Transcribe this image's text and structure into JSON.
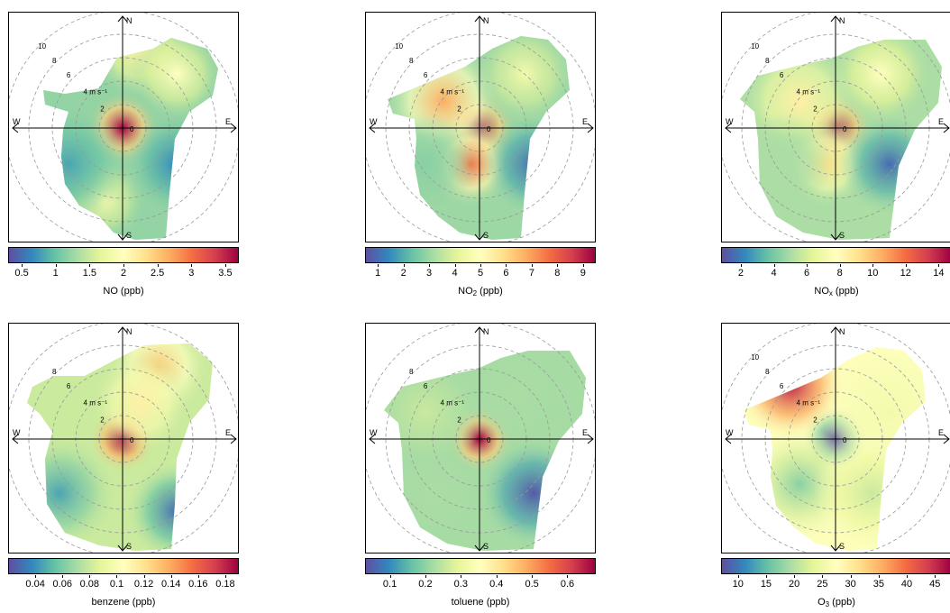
{
  "compass": {
    "north": "N",
    "south": "S",
    "east": "E",
    "west": "W"
  },
  "chart_data": [
    {
      "type": "heatmap",
      "kind": "polar plot",
      "colorbar_label": "NO (ppb)",
      "colorbar_ticks": [
        "0.5",
        "1",
        "1.5",
        "2",
        "2.5",
        "3",
        "3.5"
      ],
      "colorbar_range": [
        0.3,
        3.7
      ],
      "radial_labels": [
        "10",
        "8",
        "6",
        "4 m s⁻¹",
        "2",
        "0"
      ],
      "peak_value": 3.7,
      "background_value": 1.2
    },
    {
      "type": "heatmap",
      "kind": "polar plot",
      "colorbar_label_main": "NO",
      "colorbar_label_sub": "2",
      "colorbar_label_rest": " (ppb)",
      "colorbar_ticks": [
        "1",
        "2",
        "3",
        "4",
        "5",
        "6",
        "7",
        "8",
        "9"
      ],
      "colorbar_range": [
        0.5,
        9.5
      ],
      "radial_labels": [
        "10",
        "8",
        "6",
        "4 m s⁻¹",
        "2",
        "0"
      ],
      "peak_value": 9.3,
      "background_value": 3.0
    },
    {
      "type": "heatmap",
      "kind": "polar plot",
      "colorbar_label_main": "NO",
      "colorbar_label_sub": "x",
      "colorbar_label_rest": " (ppb)",
      "colorbar_ticks": [
        "2",
        "4",
        "6",
        "8",
        "10",
        "12",
        "14"
      ],
      "colorbar_range": [
        0.8,
        14.8
      ],
      "radial_labels": [
        "10",
        "8",
        "6",
        "4 m s⁻¹",
        "2",
        "0"
      ],
      "peak_value": 14.5,
      "background_value": 5.0
    },
    {
      "type": "heatmap",
      "kind": "polar plot",
      "colorbar_label": "benzene (ppb)",
      "colorbar_ticks": [
        "0.04",
        "0.06",
        "0.08",
        "0.1",
        "0.12",
        "0.14",
        "0.16",
        "0.18"
      ],
      "colorbar_range": [
        0.02,
        0.19
      ],
      "radial_labels": [
        "8",
        "6",
        "4 m s⁻¹",
        "2",
        "0"
      ],
      "peak_value": 0.18,
      "background_value": 0.08
    },
    {
      "type": "heatmap",
      "kind": "polar plot",
      "colorbar_label": "toluene (ppb)",
      "colorbar_ticks": [
        "0.1",
        "0.2",
        "0.3",
        "0.4",
        "0.5",
        "0.6"
      ],
      "colorbar_range": [
        0.03,
        0.68
      ],
      "radial_labels": [
        "8",
        "6",
        "4 m s⁻¹",
        "2",
        "0"
      ],
      "peak_value": 0.66,
      "background_value": 0.22
    },
    {
      "type": "heatmap",
      "kind": "polar plot",
      "colorbar_label_main": "O",
      "colorbar_label_sub": "3",
      "colorbar_label_rest": " (ppb)",
      "colorbar_ticks": [
        "10",
        "15",
        "20",
        "25",
        "30",
        "35",
        "40",
        "45"
      ],
      "colorbar_range": [
        7,
        48
      ],
      "radial_labels": [
        "10",
        "8",
        "6",
        "4 m s⁻¹",
        "2",
        "0"
      ],
      "peak_value": 46,
      "background_value": 27
    }
  ]
}
